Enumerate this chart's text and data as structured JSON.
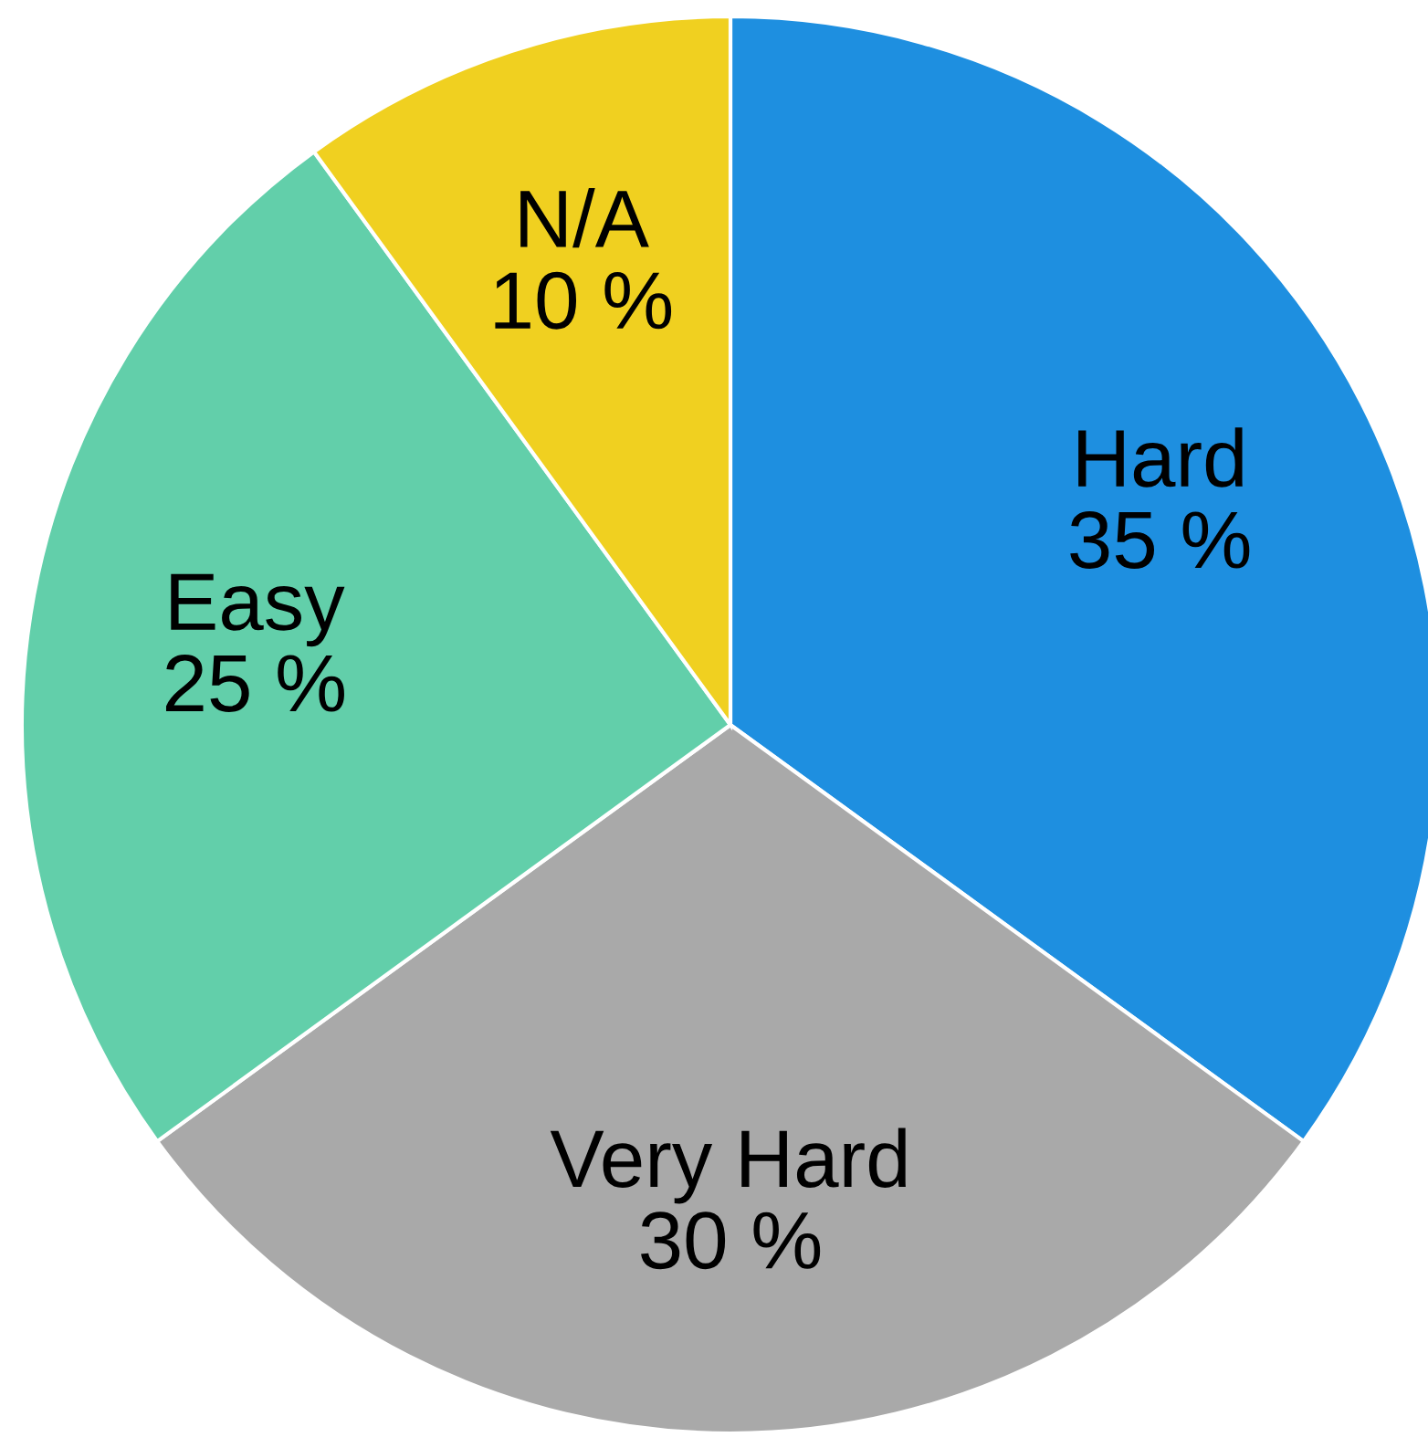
{
  "chart_data": {
    "type": "pie",
    "categories": [
      "Hard",
      "Very Hard",
      "Easy",
      "N/A"
    ],
    "values": [
      35,
      30,
      25,
      10
    ],
    "value_labels": [
      "35 %",
      "30 %",
      "25 %",
      "10 %"
    ],
    "colors": [
      "#1e8fe0",
      "#a9a9a9",
      "#62cfaa",
      "#f0d020"
    ]
  }
}
